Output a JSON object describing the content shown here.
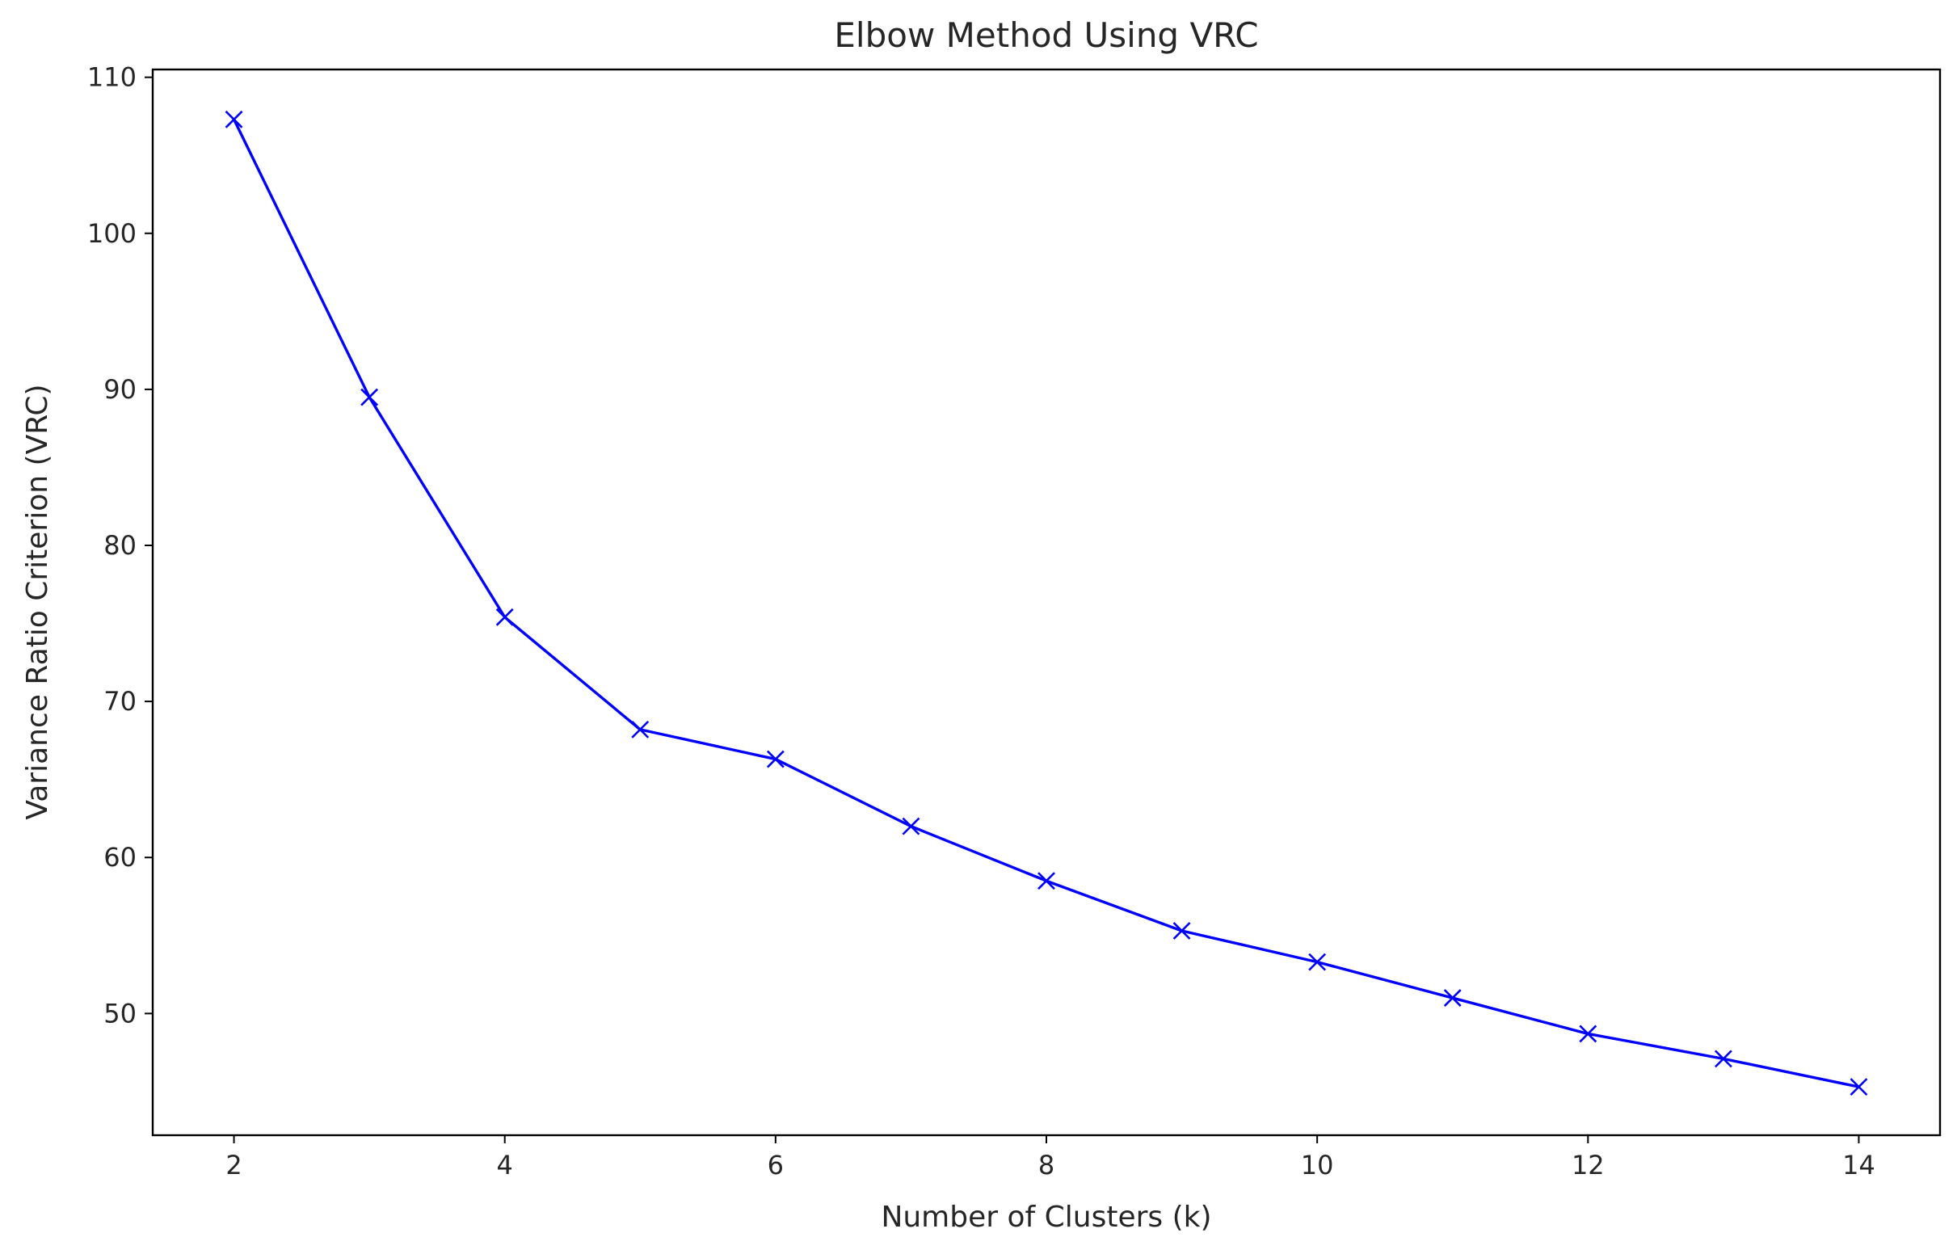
{
  "chart_data": {
    "type": "line",
    "title": "Elbow Method Using VRC",
    "xlabel": "Number of Clusters (k)",
    "ylabel": "Variance Ratio Criterion (VRC)",
    "x": [
      2,
      3,
      4,
      5,
      6,
      7,
      8,
      9,
      10,
      11,
      12,
      13,
      14
    ],
    "series": [
      {
        "values": [
          107.3,
          89.5,
          75.4,
          68.2,
          66.3,
          62.0,
          58.5,
          55.3,
          53.3,
          51.0,
          48.7,
          47.1,
          45.3
        ],
        "color": "#0000ff",
        "marker": "x"
      }
    ],
    "xlim": [
      1.4,
      14.6
    ],
    "ylim": [
      42.2,
      110.5
    ],
    "xticks": [
      2,
      4,
      6,
      8,
      10,
      12,
      14
    ],
    "yticks": [
      50,
      60,
      70,
      80,
      90,
      100,
      110
    ],
    "grid": false,
    "legend": "none"
  }
}
